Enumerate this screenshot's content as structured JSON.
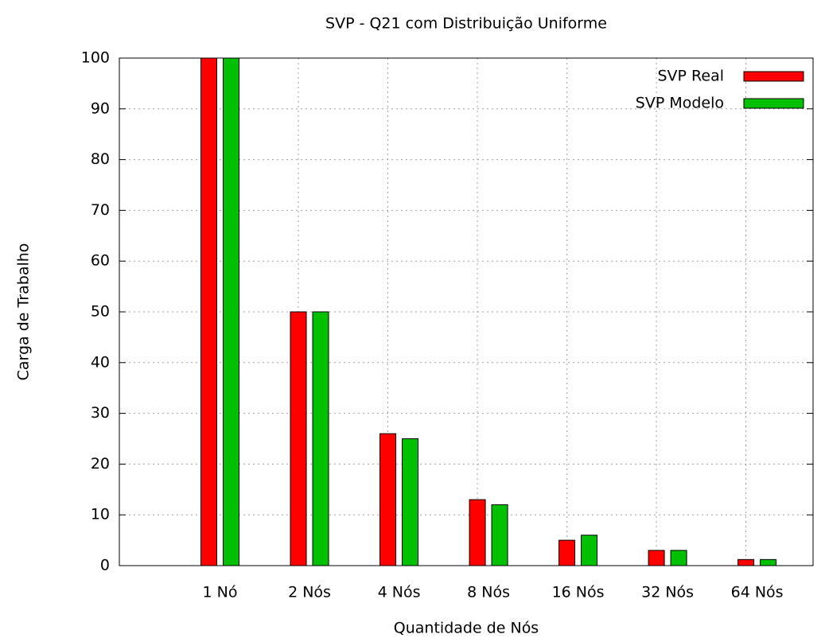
{
  "chart_data": {
    "type": "bar",
    "title": "SVP - Q21 com Distribuição Uniforme",
    "xlabel": "Quantidade de Nós",
    "ylabel": "Carga de Trabalho",
    "categories": [
      "1 Nó",
      "2 Nós",
      "4 Nós",
      "8 Nós",
      "16 Nós",
      "32 Nós",
      "64 Nós"
    ],
    "series": [
      {
        "name": "SVP Real",
        "color": "#ff0000",
        "values": [
          100,
          50,
          26,
          13,
          5,
          3,
          1.2
        ]
      },
      {
        "name": "SVP Modelo",
        "color": "#00c000",
        "values": [
          100,
          50,
          25,
          12,
          6,
          3,
          1.2
        ]
      }
    ],
    "ylim": [
      0,
      100
    ],
    "yticks": [
      0,
      10,
      20,
      30,
      40,
      50,
      60,
      70,
      80,
      90,
      100
    ],
    "grid": true,
    "legend": "top right"
  }
}
